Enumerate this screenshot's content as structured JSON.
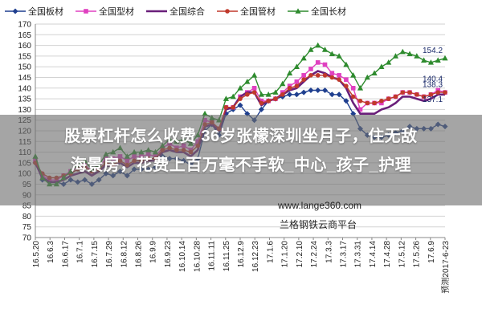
{
  "headline": {
    "line1": "股票杠杆怎么收费 36岁张檬深圳坐月子，住无敌",
    "line2": "海景房，花费上百万毫不手软_中心_孩子_护理"
  },
  "watermark": {
    "url": "www.lange360.com",
    "company": "兰格钢铁云商平台"
  },
  "chart_data": {
    "type": "line",
    "title": "",
    "xlabel": "",
    "ylabel": "",
    "ylim": [
      70,
      170
    ],
    "y_ticks": [
      70,
      75,
      80,
      85,
      90,
      95,
      100,
      105,
      110,
      115,
      120,
      125,
      130,
      135,
      140,
      145,
      150,
      155,
      160,
      165,
      170
    ],
    "x_tick_labels": [
      "16.5.20",
      "16.6.3",
      "16.6.17",
      "16.7.1",
      "16.7.15",
      "16.7.29",
      "16.8.12",
      "16.8.26",
      "16.9.9",
      "16.9.23",
      "16.10.14",
      "16.10.28",
      "16.11.11",
      "16.11.25",
      "16.12.9",
      "16.12.23",
      "17.1.6",
      "17.1.20",
      "17.2.10",
      "17.2.24",
      "17.3.3",
      "17.3.17",
      "17.3.31",
      "17.4.14",
      "17.4.28",
      "17.5.12",
      "17.5.26",
      "17.6.9",
      "预测2017-6-23"
    ],
    "grid": true,
    "legend_position": "top",
    "series": [
      {
        "name": "全国板材",
        "color": "#1f3f8f",
        "marker": "diamond",
        "values": [
          105,
          97,
          96,
          96,
          95,
          97,
          96,
          97,
          95,
          97,
          100,
          99,
          101,
          99,
          102,
          102,
          102,
          103,
          108,
          107,
          107,
          106,
          104,
          107,
          120,
          123,
          118,
          128,
          130,
          132,
          128,
          125,
          130,
          134,
          135,
          136,
          137,
          137,
          138,
          139,
          139,
          139,
          137,
          137,
          134,
          128,
          121,
          118,
          117,
          117,
          118,
          119,
          120,
          122,
          121,
          121,
          121,
          123,
          122
        ]
      },
      {
        "name": "全国型材",
        "color": "#e040c0",
        "marker": "square",
        "values": [
          106,
          99,
          97,
          97,
          99,
          101,
          103,
          104,
          101,
          103,
          107,
          107,
          108,
          106,
          108,
          108,
          109,
          108,
          112,
          114,
          112,
          113,
          111,
          115,
          125,
          124,
          121,
          131,
          131,
          136,
          138,
          140,
          134,
          134,
          135,
          138,
          141,
          143,
          146,
          149,
          152,
          151,
          147,
          146,
          144,
          140,
          130,
          133,
          133,
          133,
          135,
          136,
          138,
          138,
          137,
          136,
          137,
          139,
          138
        ]
      },
      {
        "name": "全国综合",
        "color": "#6a1f7a",
        "marker": "none",
        "values": [
          105,
          98,
          96,
          96,
          97,
          99,
          100,
          101,
          99,
          101,
          104,
          103,
          105,
          103,
          105,
          105,
          106,
          106,
          110,
          111,
          110,
          110,
          108,
          111,
          122,
          123,
          120,
          130,
          131,
          136,
          138,
          138,
          132,
          134,
          135,
          137,
          139,
          140,
          143,
          146,
          148,
          147,
          145,
          144,
          140,
          133,
          128,
          128,
          128,
          130,
          131,
          133,
          136,
          136,
          135,
          134,
          135,
          137,
          137
        ]
      },
      {
        "name": "全国管材",
        "color": "#c0392b",
        "marker": "circle",
        "values": [
          105,
          100,
          98,
          98,
          99,
          100,
          102,
          103,
          101,
          102,
          105,
          104,
          106,
          104,
          106,
          106,
          107,
          107,
          111,
          112,
          111,
          111,
          110,
          113,
          123,
          124,
          121,
          131,
          131,
          135,
          137,
          138,
          133,
          134,
          135,
          137,
          140,
          141,
          144,
          146,
          146,
          146,
          145,
          144,
          141,
          136,
          134,
          133,
          133,
          134,
          135,
          136,
          138,
          138,
          137,
          136,
          137,
          138,
          138
        ]
      },
      {
        "name": "全国长材",
        "color": "#2e8b2e",
        "marker": "triangle",
        "values": [
          108,
          98,
          95,
          95,
          98,
          101,
          104,
          106,
          102,
          104,
          109,
          110,
          112,
          108,
          110,
          110,
          111,
          110,
          113,
          116,
          115,
          116,
          114,
          118,
          128,
          126,
          125,
          135,
          136,
          140,
          143,
          146,
          137,
          137,
          138,
          142,
          147,
          150,
          154,
          158,
          160,
          158,
          156,
          155,
          151,
          146,
          140,
          145,
          147,
          150,
          152,
          155,
          157,
          156,
          155,
          153,
          152,
          153,
          154
        ]
      }
    ],
    "end_labels": [
      "154.2",
      "140.4",
      "138.3",
      "137.1"
    ]
  }
}
